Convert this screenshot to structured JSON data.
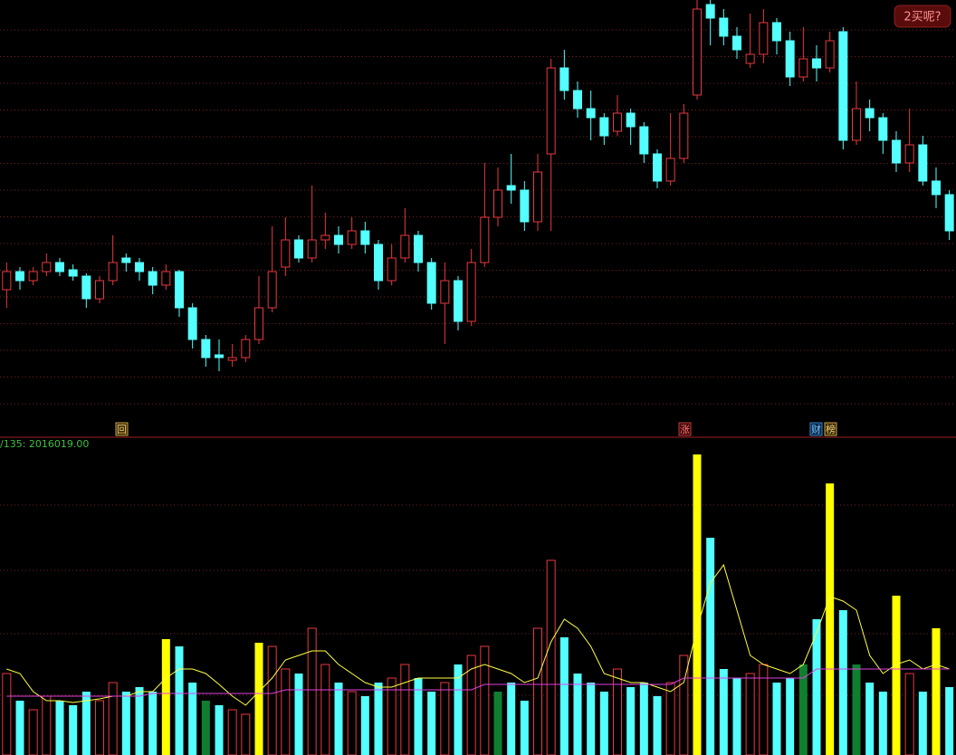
{
  "chart_data": {
    "type": "candlestick",
    "up_color": "#e8393f",
    "down_color": "#54ffff",
    "grid_color": "#7a1f1f",
    "ylim": [
      0,
      470
    ],
    "candles": [
      [
        150,
        180,
        130,
        170
      ],
      [
        170,
        175,
        150,
        160
      ],
      [
        160,
        175,
        155,
        170
      ],
      [
        170,
        190,
        165,
        180
      ],
      [
        180,
        185,
        165,
        170
      ],
      [
        172,
        178,
        160,
        165
      ],
      [
        165,
        168,
        130,
        140
      ],
      [
        140,
        165,
        135,
        160
      ],
      [
        160,
        210,
        155,
        180
      ],
      [
        185,
        190,
        170,
        180
      ],
      [
        180,
        185,
        160,
        170
      ],
      [
        170,
        175,
        145,
        155
      ],
      [
        155,
        178,
        150,
        170
      ],
      [
        170,
        172,
        120,
        130
      ],
      [
        130,
        135,
        85,
        95
      ],
      [
        95,
        100,
        65,
        75
      ],
      [
        78,
        95,
        60,
        75
      ],
      [
        72,
        90,
        65,
        75
      ],
      [
        75,
        100,
        70,
        95
      ],
      [
        95,
        165,
        90,
        130
      ],
      [
        130,
        220,
        125,
        170
      ],
      [
        175,
        230,
        165,
        205
      ],
      [
        205,
        210,
        180,
        185
      ],
      [
        185,
        265,
        180,
        205
      ],
      [
        205,
        235,
        195,
        210
      ],
      [
        210,
        220,
        190,
        200
      ],
      [
        200,
        230,
        195,
        215
      ],
      [
        215,
        225,
        190,
        200
      ],
      [
        200,
        205,
        150,
        160
      ],
      [
        160,
        200,
        155,
        185
      ],
      [
        185,
        240,
        180,
        210
      ],
      [
        210,
        215,
        170,
        180
      ],
      [
        180,
        185,
        128,
        135
      ],
      [
        135,
        180,
        90,
        160
      ],
      [
        160,
        165,
        105,
        115
      ],
      [
        115,
        195,
        110,
        180
      ],
      [
        180,
        290,
        175,
        230
      ],
      [
        230,
        285,
        220,
        260
      ],
      [
        265,
        300,
        245,
        260
      ],
      [
        260,
        270,
        215,
        225
      ],
      [
        225,
        300,
        215,
        280
      ],
      [
        300,
        405,
        215,
        395
      ],
      [
        395,
        415,
        360,
        370
      ],
      [
        370,
        380,
        340,
        350
      ],
      [
        350,
        370,
        315,
        340
      ],
      [
        340,
        345,
        310,
        320
      ],
      [
        325,
        365,
        320,
        345
      ],
      [
        345,
        350,
        310,
        330
      ],
      [
        330,
        335,
        290,
        300
      ],
      [
        300,
        305,
        262,
        270
      ],
      [
        270,
        345,
        265,
        295
      ],
      [
        295,
        355,
        290,
        345
      ],
      [
        365,
        480,
        360,
        460
      ],
      [
        465,
        475,
        420,
        450
      ],
      [
        450,
        460,
        420,
        430
      ],
      [
        430,
        440,
        405,
        415
      ],
      [
        400,
        455,
        395,
        410
      ],
      [
        410,
        460,
        400,
        445
      ],
      [
        445,
        450,
        410,
        425
      ],
      [
        425,
        435,
        375,
        385
      ],
      [
        385,
        440,
        380,
        405
      ],
      [
        405,
        420,
        380,
        395
      ],
      [
        395,
        435,
        390,
        425
      ],
      [
        435,
        440,
        305,
        315
      ],
      [
        315,
        380,
        310,
        350
      ],
      [
        350,
        360,
        325,
        340
      ],
      [
        340,
        345,
        300,
        315
      ],
      [
        315,
        325,
        280,
        290
      ],
      [
        290,
        350,
        280,
        310
      ],
      [
        310,
        320,
        265,
        270
      ],
      [
        270,
        285,
        240,
        255
      ],
      [
        255,
        260,
        205,
        215
      ]
    ],
    "markers": [
      "回",
      "涨",
      "财",
      "榜"
    ],
    "volume_label": "/135: 2016019.00",
    "button": "2买呢?",
    "volume": {
      "ylim": [
        0,
        334
      ],
      "values": [
        90,
        60,
        50,
        65,
        60,
        55,
        70,
        60,
        80,
        70,
        75,
        70,
        128,
        120,
        80,
        60,
        55,
        50,
        45,
        124,
        120,
        95,
        90,
        140,
        100,
        80,
        70,
        65,
        80,
        85,
        100,
        85,
        70,
        80,
        100,
        110,
        120,
        70,
        80,
        60,
        140,
        215,
        130,
        90,
        80,
        70,
        95,
        75,
        80,
        65,
        80,
        110,
        332,
        240,
        95,
        85,
        90,
        100,
        80,
        85,
        100,
        150,
        300,
        160,
        100,
        80,
        70,
        176,
        90,
        70,
        140,
        75
      ],
      "colors": [
        "#e8393f",
        "#54ffff",
        "#e8393f",
        "#e8393f",
        "#54ffff",
        "#54ffff",
        "#54ffff",
        "#e8393f",
        "#e8393f",
        "#54ffff",
        "#54ffff",
        "#54ffff",
        "#ffff00",
        "#54ffff",
        "#54ffff",
        "#0f7f2f",
        "#54ffff",
        "#e8393f",
        "#e8393f",
        "#ffff00",
        "#e8393f",
        "#e8393f",
        "#54ffff",
        "#e8393f",
        "#e8393f",
        "#54ffff",
        "#e8393f",
        "#54ffff",
        "#54ffff",
        "#e8393f",
        "#e8393f",
        "#54ffff",
        "#54ffff",
        "#e8393f",
        "#54ffff",
        "#e8393f",
        "#e8393f",
        "#0f7f2f",
        "#54ffff",
        "#54ffff",
        "#e8393f",
        "#e8393f",
        "#54ffff",
        "#54ffff",
        "#54ffff",
        "#54ffff",
        "#e8393f",
        "#54ffff",
        "#54ffff",
        "#54ffff",
        "#e8393f",
        "#e8393f",
        "#ffff00",
        "#54ffff",
        "#54ffff",
        "#54ffff",
        "#e8393f",
        "#e8393f",
        "#54ffff",
        "#54ffff",
        "#0f7f2f",
        "#54ffff",
        "#ffff00",
        "#54ffff",
        "#0f7f2f",
        "#54ffff",
        "#54ffff",
        "#ffff00",
        "#e8393f",
        "#54ffff",
        "#ffff00",
        "#54ffff"
      ],
      "lines": [
        {
          "color": "#ffff40",
          "values": [
            95,
            90,
            70,
            60,
            60,
            58,
            60,
            62,
            65,
            65,
            70,
            70,
            85,
            95,
            95,
            90,
            78,
            65,
            55,
            70,
            85,
            105,
            110,
            115,
            115,
            100,
            90,
            80,
            75,
            75,
            80,
            85,
            85,
            85,
            85,
            95,
            100,
            95,
            90,
            80,
            85,
            125,
            150,
            140,
            120,
            90,
            85,
            80,
            80,
            75,
            70,
            80,
            140,
            190,
            210,
            160,
            110,
            100,
            95,
            90,
            100,
            135,
            175,
            170,
            160,
            110,
            90,
            100,
            105,
            95,
            100,
            95
          ]
        },
        {
          "color": "#e040e0",
          "values": [
            65,
            65,
            65,
            65,
            65,
            65,
            65,
            65,
            65,
            65,
            65,
            68,
            68,
            68,
            68,
            68,
            68,
            68,
            68,
            68,
            68,
            72,
            72,
            72,
            72,
            72,
            72,
            72,
            72,
            72,
            72,
            72,
            72,
            72,
            72,
            72,
            78,
            78,
            78,
            78,
            78,
            78,
            78,
            78,
            78,
            78,
            78,
            78,
            78,
            78,
            78,
            85,
            85,
            85,
            85,
            85,
            85,
            85,
            85,
            85,
            85,
            95,
            95,
            95,
            95,
            95,
            95,
            95,
            95,
            95,
            95,
            95
          ]
        }
      ]
    }
  }
}
